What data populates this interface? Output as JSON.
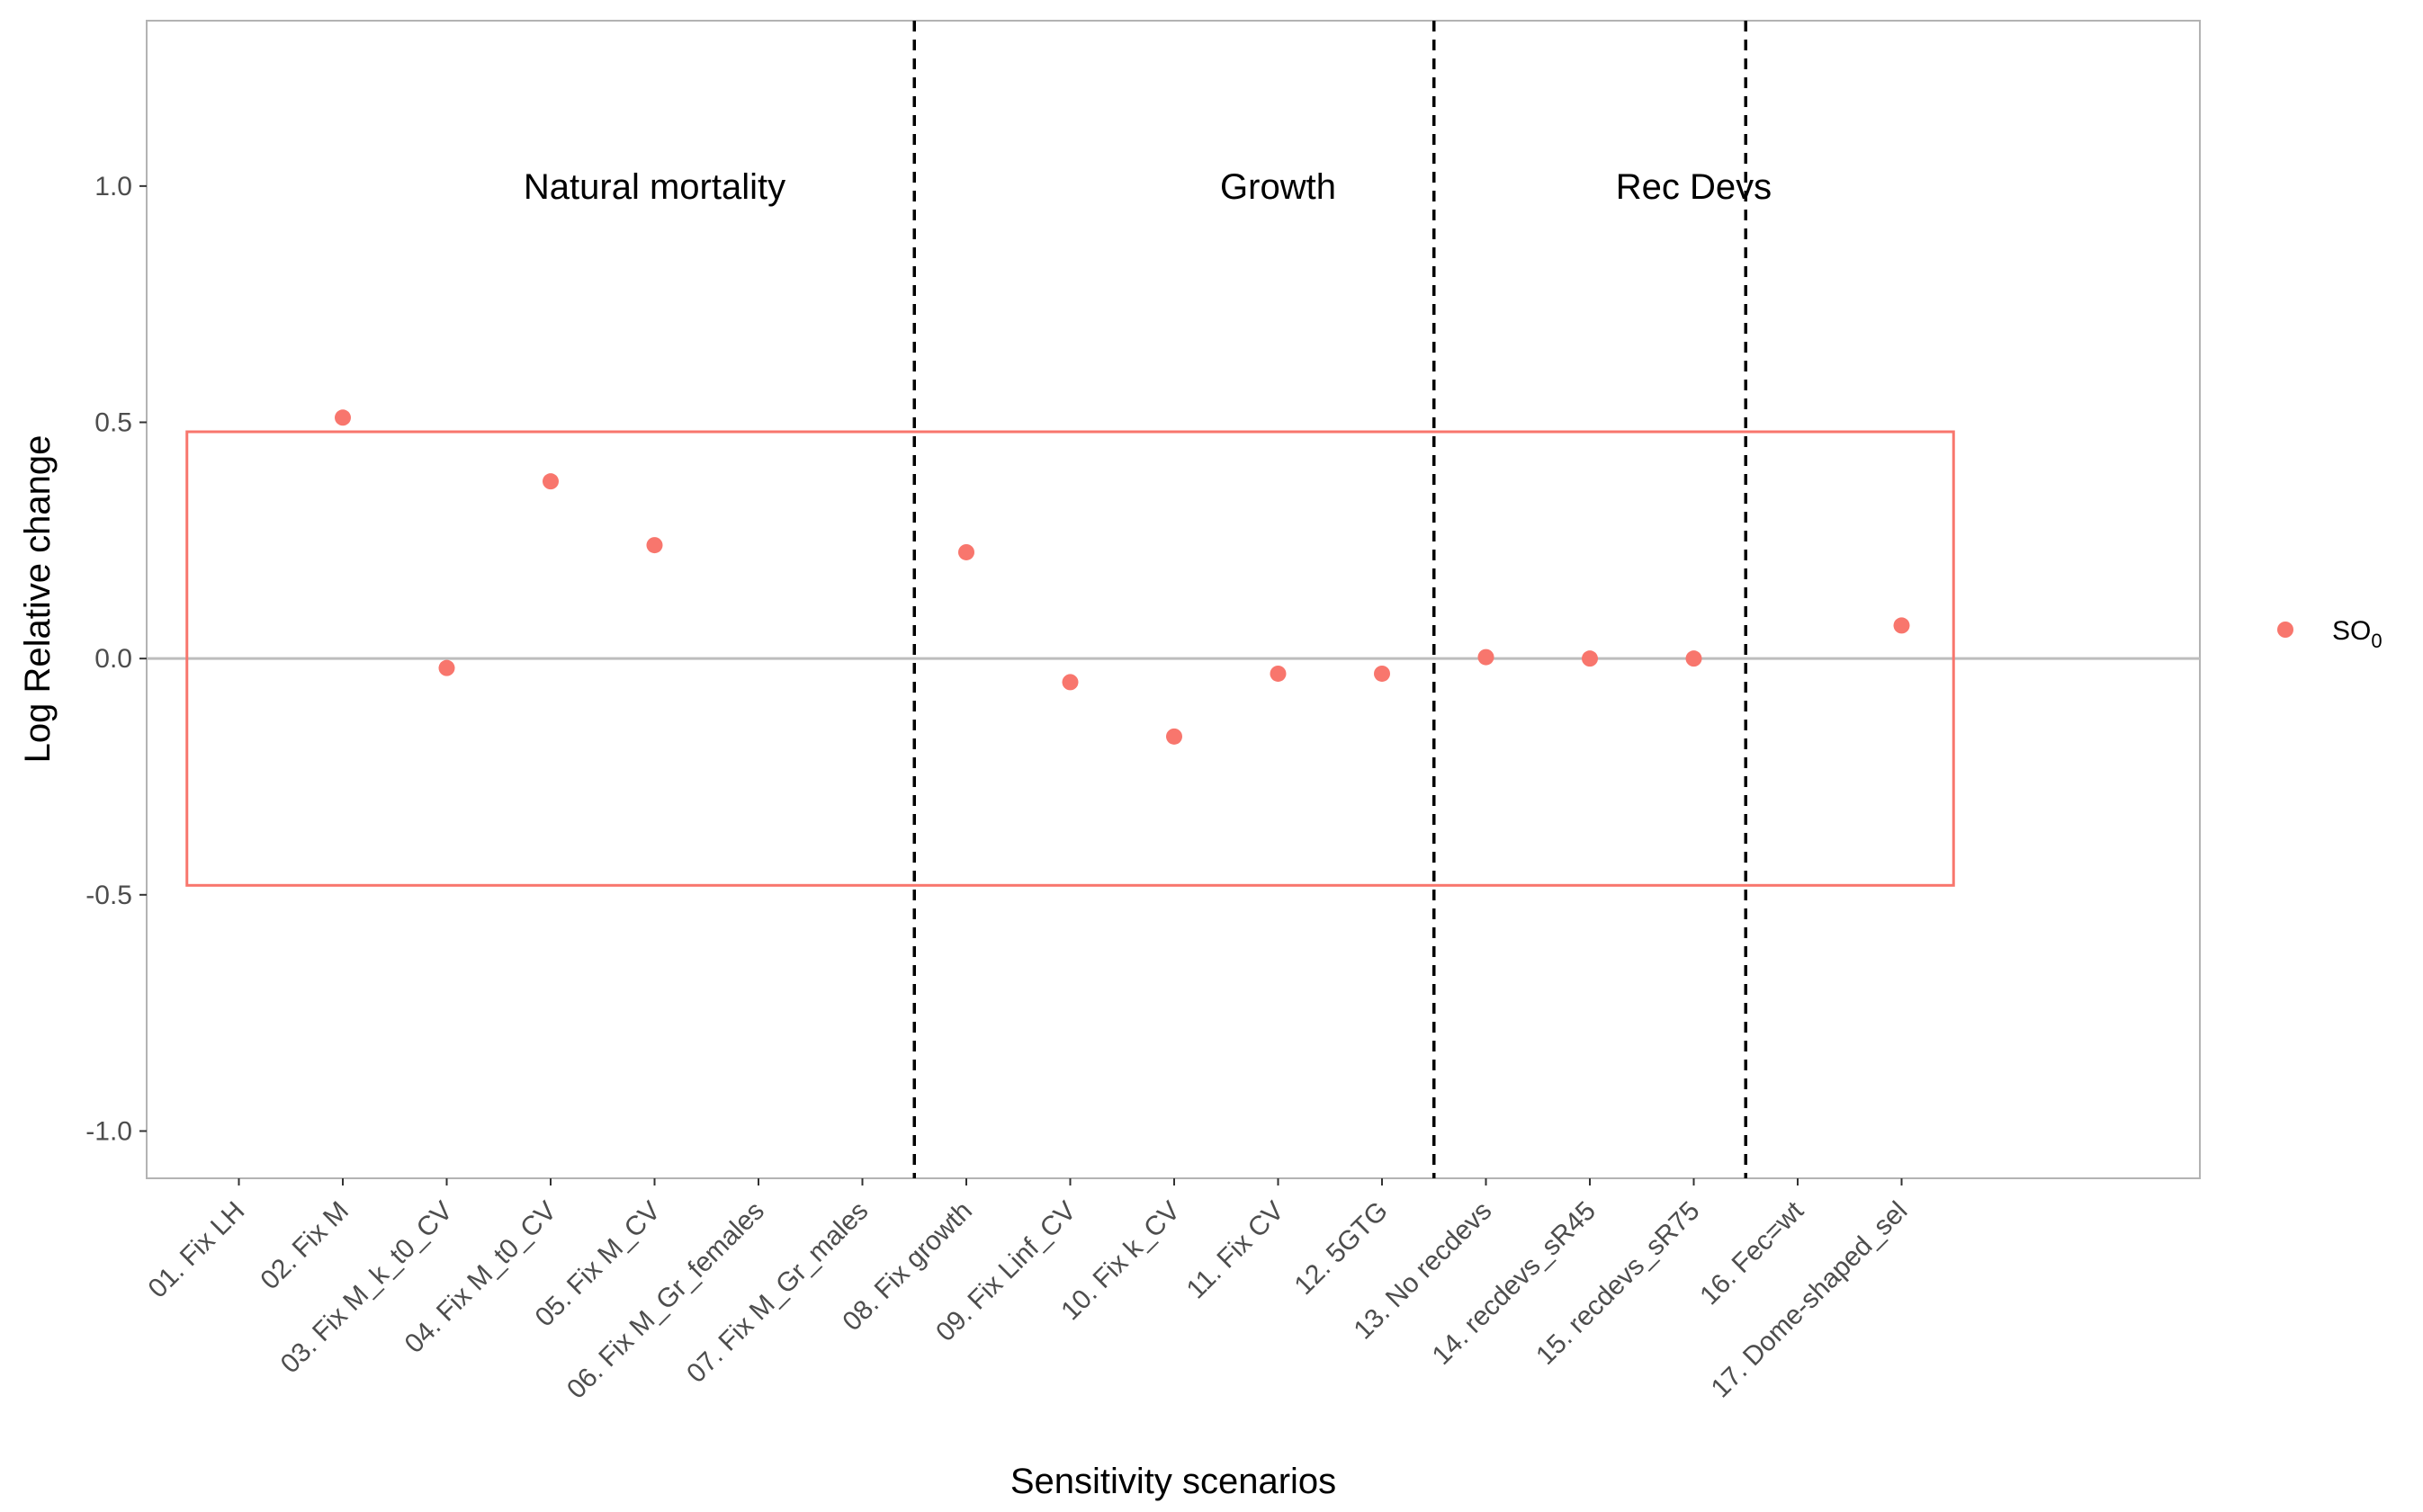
{
  "chart_data": {
    "type": "scatter",
    "xlabel": "Sensitivity scenarios",
    "ylabel": "Log Relative change",
    "ylim": [
      -1.1,
      1.35
    ],
    "y_ticks": [
      -1.0,
      -0.5,
      0.0,
      0.5,
      1.0
    ],
    "y_tick_labels": [
      "-1.0",
      "-0.5",
      "0.0",
      "0.5",
      "1.0"
    ],
    "categories": [
      "01. Fix LH",
      "02. Fix M",
      "03. Fix M_k_t0_CV",
      "04. Fix M_t0_CV",
      "05. Fix M_CV",
      "06. Fix M_Gr_females",
      "07. Fix M_Gr_males",
      "08. Fix growth",
      "09. Fix Linf_CV",
      "10. Fix k_CV",
      "11. Fix CV",
      "12. 5GTG",
      "13. No recdevs",
      "14. recdevs_sR45",
      "15. recdevs_sR75",
      "16. Fec=wt",
      "17. Dome-shaped_sel"
    ],
    "series": [
      {
        "name": "SO",
        "name_subscript": "0",
        "color": "#f8766d",
        "values": [
          null,
          0.51,
          -0.02,
          0.375,
          0.24,
          null,
          null,
          0.225,
          -0.05,
          -0.165,
          -0.032,
          -0.032,
          0.003,
          0.0,
          0.0,
          null,
          0.07
        ]
      }
    ],
    "reference_line_y": 0.0,
    "reference_box": {
      "ymin": -0.48,
      "ymax": 0.48,
      "color": "#f8766d"
    },
    "section_dividers_after_category": [
      7,
      12,
      15
    ],
    "sections": [
      {
        "label": "Natural mortality",
        "center_category": 4
      },
      {
        "label": "Growth",
        "center_category": 10
      },
      {
        "label": "Rec Devs",
        "center_category": 14
      }
    ],
    "grid": false,
    "legend_position": "right"
  }
}
